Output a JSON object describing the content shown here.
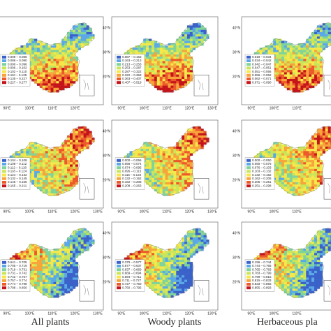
{
  "columns": [
    "All plants",
    "Woody plants",
    "Herbaceous pla"
  ],
  "legend_colors": [
    "#3a62c9",
    "#5aa9e6",
    "#7fd39b",
    "#c9e55a",
    "#f6e84a",
    "#f7a43a",
    "#ec5a2a",
    "#c4141a"
  ],
  "panels": [
    {
      "legend": [
        "0.009 – 0.086",
        "0.086 – 0.090",
        "0.090 – 0.096",
        "0.096 – 0.102",
        "0.102 – 0.110",
        "0.110 – 0.135",
        "0.135 – 0.227",
        "0.227 – 0.277"
      ],
      "lon_labels": [
        "90°E",
        "100°E",
        "110°E",
        "120°E"
      ],
      "lat_labels": []
    },
    {
      "legend": [
        "0.087 – 0.163",
        "0.163 – 0.213",
        "0.213 – 0.253",
        "0.253 – 0.287",
        "0.287 – 0.322",
        "0.322 – 0.363",
        "0.363 – 0.407",
        "0.407 – 0.519"
      ],
      "lon_labels": [
        "90°E",
        "100°E",
        "110°E",
        "120°E",
        "130°E"
      ],
      "lat_labels": [
        "40°N",
        "30°N",
        "20°N"
      ]
    },
    {
      "legend": [
        "0.019 – 0.034",
        "0.034 – 0.042",
        "0.042 – 0.047",
        "0.047 – 0.051",
        "0.051 – 0.056",
        "0.056 – 0.062",
        "0.062 – 0.071",
        "0.071 – 0.090"
      ],
      "lon_labels": [
        "90°E",
        "100°E",
        "110°E"
      ],
      "lat_labels": [
        "40°N",
        "30°N",
        "20°N"
      ]
    },
    {
      "legend": [
        "0.104 – 0.108",
        "0.108 – 0.112",
        "0.112 – 0.118",
        "0.118 – 0.124",
        "0.124 – 0.132",
        "0.132 – 0.145",
        "0.145 – 0.165",
        "0.165 – 0.211"
      ],
      "lon_labels": [
        "90°E",
        "100°E",
        "110°E",
        "120°E",
        "130°E"
      ],
      "lat_labels": []
    },
    {
      "legend": [
        "0.000 – 0.056",
        "0.056 – 0.074",
        "0.074 – 0.095",
        "0.095 – 0.115",
        "0.115 – 0.132",
        "0.132 – 0.162",
        "0.162 – 0.208",
        "0.208 – 0.263"
      ],
      "lon_labels": [
        "90°E",
        "100°E",
        "110°E",
        "120°E",
        "130°E"
      ],
      "lat_labels": [
        "40°N",
        "30°N",
        "20°N"
      ]
    },
    {
      "legend": [
        "0.000 – 0.050",
        "0.050 – 0.076",
        "0.076 – 0.103",
        "0.103 – 0.132",
        "0.132 – 0.162",
        "0.162 – 0.205",
        "0.205 – 0.251",
        "0.251 – 0.298"
      ],
      "lon_labels": [
        "90°E",
        "100°E",
        "110°E"
      ],
      "lat_labels": [
        "40°N",
        "30°N",
        "20°N"
      ]
    },
    {
      "legend": [
        "0.641 – 0.705",
        "0.705 – 0.719",
        "0.719 – 0.731",
        "0.731 – 0.742",
        "0.742 – 0.757",
        "0.757 – 0.774",
        "0.774 – 0.798",
        "0.798 – 0.850"
      ],
      "lon_labels": [
        "90°E",
        "100°E",
        "110°E",
        "120°E",
        "130°E"
      ],
      "lat_labels": []
    },
    {
      "legend": [
        "0.379 – 0.577",
        "0.577 – 0.637",
        "0.637 – 0.669",
        "0.669 – 0.694",
        "0.694 – 0.711",
        "0.711 – 0.727",
        "0.727 – 0.750",
        "0.750 – 0.795"
      ],
      "lon_labels": [
        "90°E",
        "100°E",
        "110°E",
        "120°E",
        "130°E"
      ],
      "lat_labels": [
        "40°N",
        "30°N",
        "20°N"
      ]
    },
    {
      "legend": [
        "0.196 – 0.744",
        "0.744 – 0.765",
        "0.765 – 0.783",
        "0.783 – 0.799",
        "0.799 – 0.815",
        "0.815 – 0.833",
        "0.833 – 0.855",
        "0.855 – 0.893"
      ],
      "lon_labels": [
        "90°E",
        "100°E",
        "110°E"
      ],
      "lat_labels": [
        "40°N",
        "30°N",
        "20°N"
      ]
    }
  ]
}
